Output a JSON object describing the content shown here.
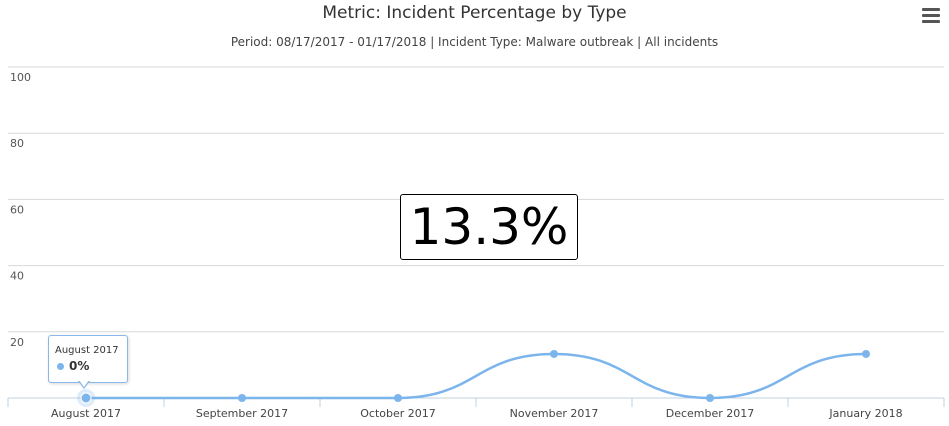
{
  "chart_data": {
    "type": "line",
    "title": "Metric: Incident Percentage by Type",
    "subtitle": "Period: 08/17/2017 - 01/17/2018 | Incident Type: Malware outbreak | All incidents",
    "categories": [
      "August 2017",
      "September 2017",
      "October 2017",
      "November 2017",
      "December 2017",
      "January 2018"
    ],
    "series": [
      {
        "values": [
          0,
          0,
          0,
          13.3,
          0,
          13.3
        ],
        "color": "#7cb5ec"
      }
    ],
    "ylim": [
      0,
      100
    ],
    "yticks": [
      "100",
      "80",
      "60",
      "40",
      "20"
    ],
    "grid": true,
    "highlight_value": "13.3%",
    "tooltip": {
      "title": "August 2017",
      "value": "0%"
    }
  }
}
